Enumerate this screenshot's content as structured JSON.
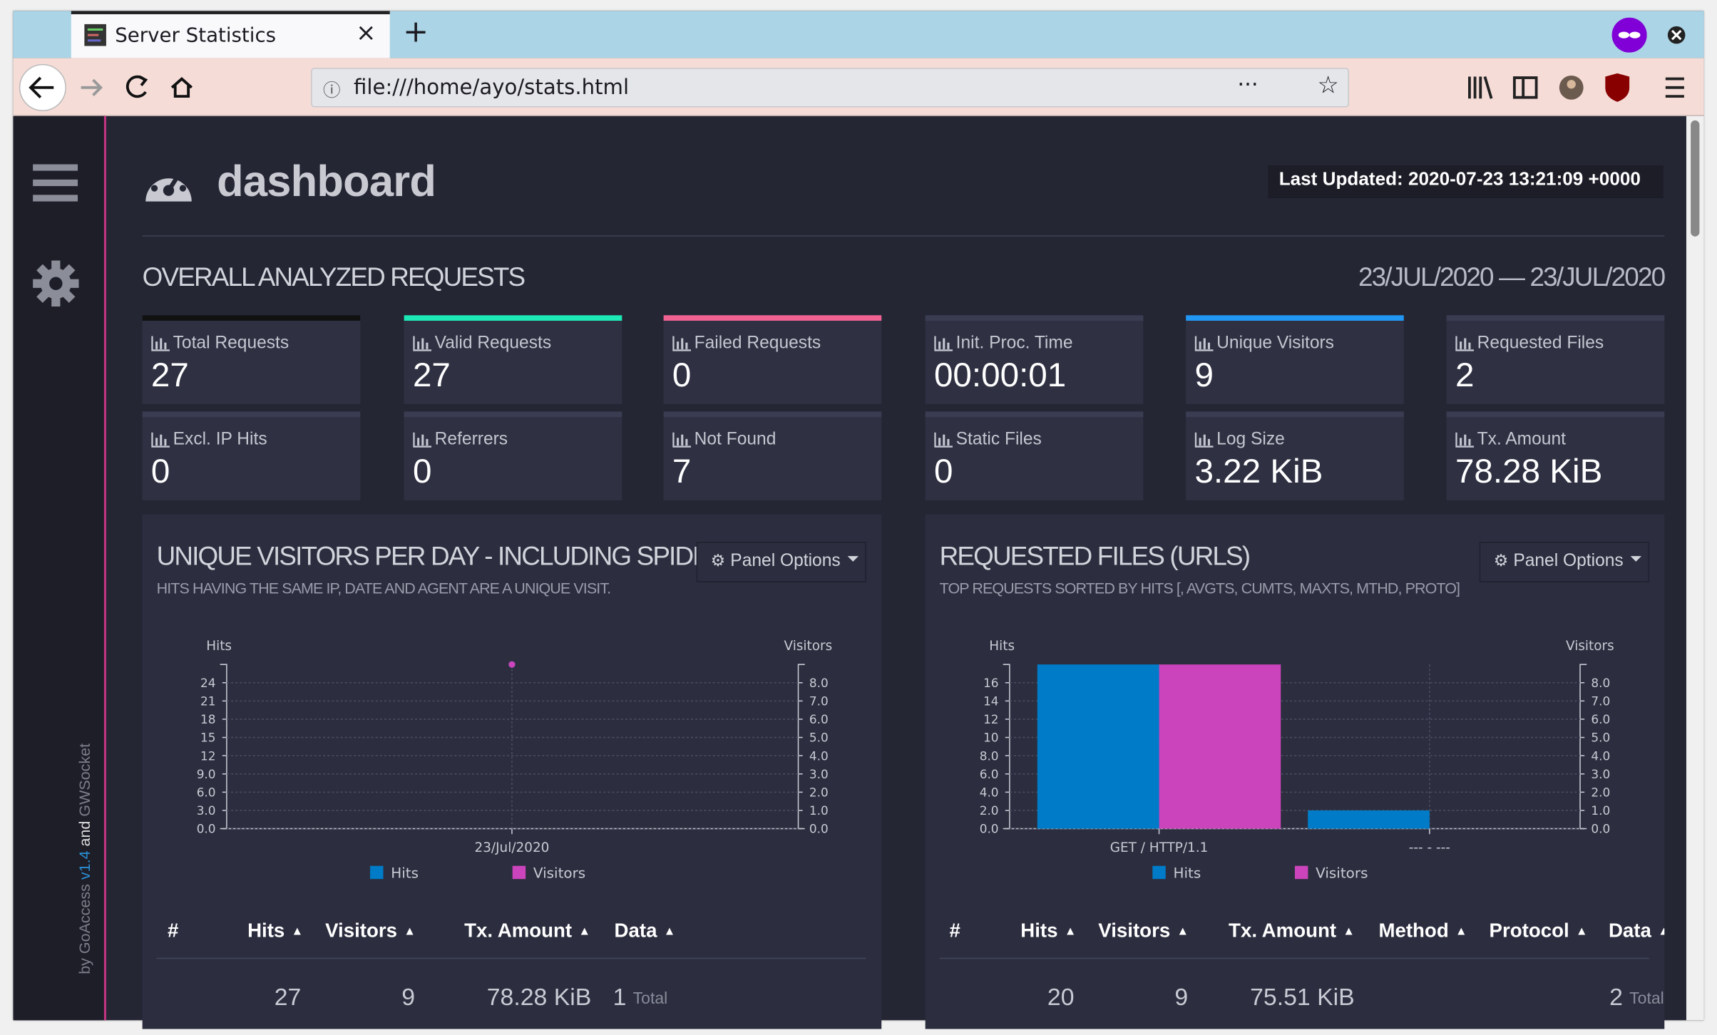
{
  "browser": {
    "tab_title": "Server Statistics",
    "url": "file:///home/ayo/stats.html"
  },
  "sidebar": {
    "credit": [
      "by GoAccess",
      "v1.4",
      "and",
      "GWSocket"
    ]
  },
  "header": {
    "title": "dashboard",
    "last_updated": "Last Updated: 2020-07-23 13:21:09 +0000"
  },
  "overall": {
    "title": "OVERALL ANALYZED REQUESTS",
    "date_range": "23/JUL/2020 — 23/JUL/2020",
    "metrics": [
      {
        "label": "Total Requests",
        "value": 27,
        "color": "#111111"
      },
      {
        "label": "Valid Requests",
        "value": 27,
        "color": "#1de9b6"
      },
      {
        "label": "Failed Requests",
        "value": 0,
        "color": "#f06292"
      },
      {
        "label": "Init. Proc. Time",
        "value": "00:00:01",
        "color": "#3a3d52"
      },
      {
        "label": "Unique Visitors",
        "value": 9,
        "color": "#2196f3"
      },
      {
        "label": "Requested Files",
        "value": 2,
        "color": "#3a3d52"
      },
      {
        "label": "Excl. IP Hits",
        "value": 0,
        "color": "#3a3d52"
      },
      {
        "label": "Referrers",
        "value": 0,
        "color": "#3a3d52"
      },
      {
        "label": "Not Found",
        "value": 7,
        "color": "#3a3d52"
      },
      {
        "label": "Static Files",
        "value": 0,
        "color": "#3a3d52"
      },
      {
        "label": "Log Size",
        "value": "3.22 KiB",
        "color": "#3a3d52"
      },
      {
        "label": "Tx. Amount",
        "value": "78.28 KiB",
        "color": "#3a3d52"
      }
    ]
  },
  "panels": [
    {
      "title": "UNIQUE VISITORS PER DAY - INCLUDING SPIDERS",
      "subtitle": "HITS HAVING THE SAME IP, DATE AND AGENT ARE A UNIQUE VISIT.",
      "options_button": "Panel Options",
      "chart": {
        "type": "line",
        "y_label": "Hits",
        "y2_label": "Visitors",
        "categories": [
          "23/Jul/2020"
        ],
        "series": [
          {
            "name": "Hits",
            "color": "#007bc7",
            "values": [
              27
            ]
          },
          {
            "name": "Visitors",
            "color": "#cc44bb",
            "values": [
              9
            ],
            "axis": "y2"
          }
        ],
        "ylim": [
          0,
          27
        ],
        "yticks": [
          {
            "value": 0,
            "label": "0.0"
          },
          {
            "value": 3,
            "label": "3.0"
          },
          {
            "value": 6,
            "label": "6.0"
          },
          {
            "value": 9,
            "label": "9.0"
          },
          12,
          15,
          18,
          21,
          24
        ],
        "y2lim": [
          0,
          9
        ],
        "y2ticks": [
          {
            "value": 0,
            "label": "0.0"
          },
          {
            "value": 1,
            "label": "1.0"
          },
          {
            "value": 2,
            "label": "2.0"
          },
          {
            "value": 3,
            "label": "3.0"
          },
          {
            "value": 4,
            "label": "4.0"
          },
          {
            "value": 5,
            "label": "5.0"
          },
          {
            "value": 6,
            "label": "6.0"
          },
          {
            "value": 7,
            "label": "7.0"
          },
          {
            "value": 8,
            "label": "8.0"
          }
        ],
        "grid": true
      },
      "table": {
        "headers": [
          "#",
          "Hits",
          "Visitors",
          "Tx. Amount",
          "Data"
        ],
        "rows": [
          [
            "27",
            "9",
            "78.28 KiB",
            "1",
            "Total"
          ]
        ]
      }
    },
    {
      "title": "REQUESTED FILES (URLS)",
      "subtitle": "TOP REQUESTS SORTED BY HITS [, AVGTS, CUMTS, MAXTS, MTHD, PROTO]",
      "options_button": "Panel Options",
      "chart": {
        "type": "bar",
        "y_label": "Hits",
        "y2_label": "Visitors",
        "categories": [
          "GET / HTTP/1.1",
          "--- - ---"
        ],
        "series": [
          {
            "name": "Hits",
            "color": "#007bc7",
            "values": [
              18,
              2
            ]
          },
          {
            "name": "Visitors",
            "color": "#cc44bb",
            "values": [
              9,
              0
            ],
            "axis": "y2"
          }
        ],
        "ylim": [
          0,
          18
        ],
        "yticks": [
          {
            "value": 0,
            "label": "0.0"
          },
          {
            "value": 2,
            "label": "2.0"
          },
          {
            "value": 4,
            "label": "4.0"
          },
          {
            "value": 6,
            "label": "6.0"
          },
          {
            "value": 8,
            "label": "8.0"
          },
          10,
          12,
          14,
          16
        ],
        "y2lim": [
          0,
          9
        ],
        "y2ticks": [
          {
            "value": 0,
            "label": "0.0"
          },
          {
            "value": 1,
            "label": "1.0"
          },
          {
            "value": 2,
            "label": "2.0"
          },
          {
            "value": 3,
            "label": "3.0"
          },
          {
            "value": 4,
            "label": "4.0"
          },
          {
            "value": 5,
            "label": "5.0"
          },
          {
            "value": 6,
            "label": "6.0"
          },
          {
            "value": 7,
            "label": "7.0"
          },
          {
            "value": 8,
            "label": "8.0"
          }
        ],
        "grid": true
      },
      "table": {
        "headers": [
          "#",
          "Hits",
          "Visitors",
          "Tx. Amount",
          "Method",
          "Protocol",
          "Data"
        ],
        "rows": [
          [
            "20",
            "9",
            "75.51 KiB",
            "2",
            "Total"
          ]
        ]
      }
    }
  ]
}
